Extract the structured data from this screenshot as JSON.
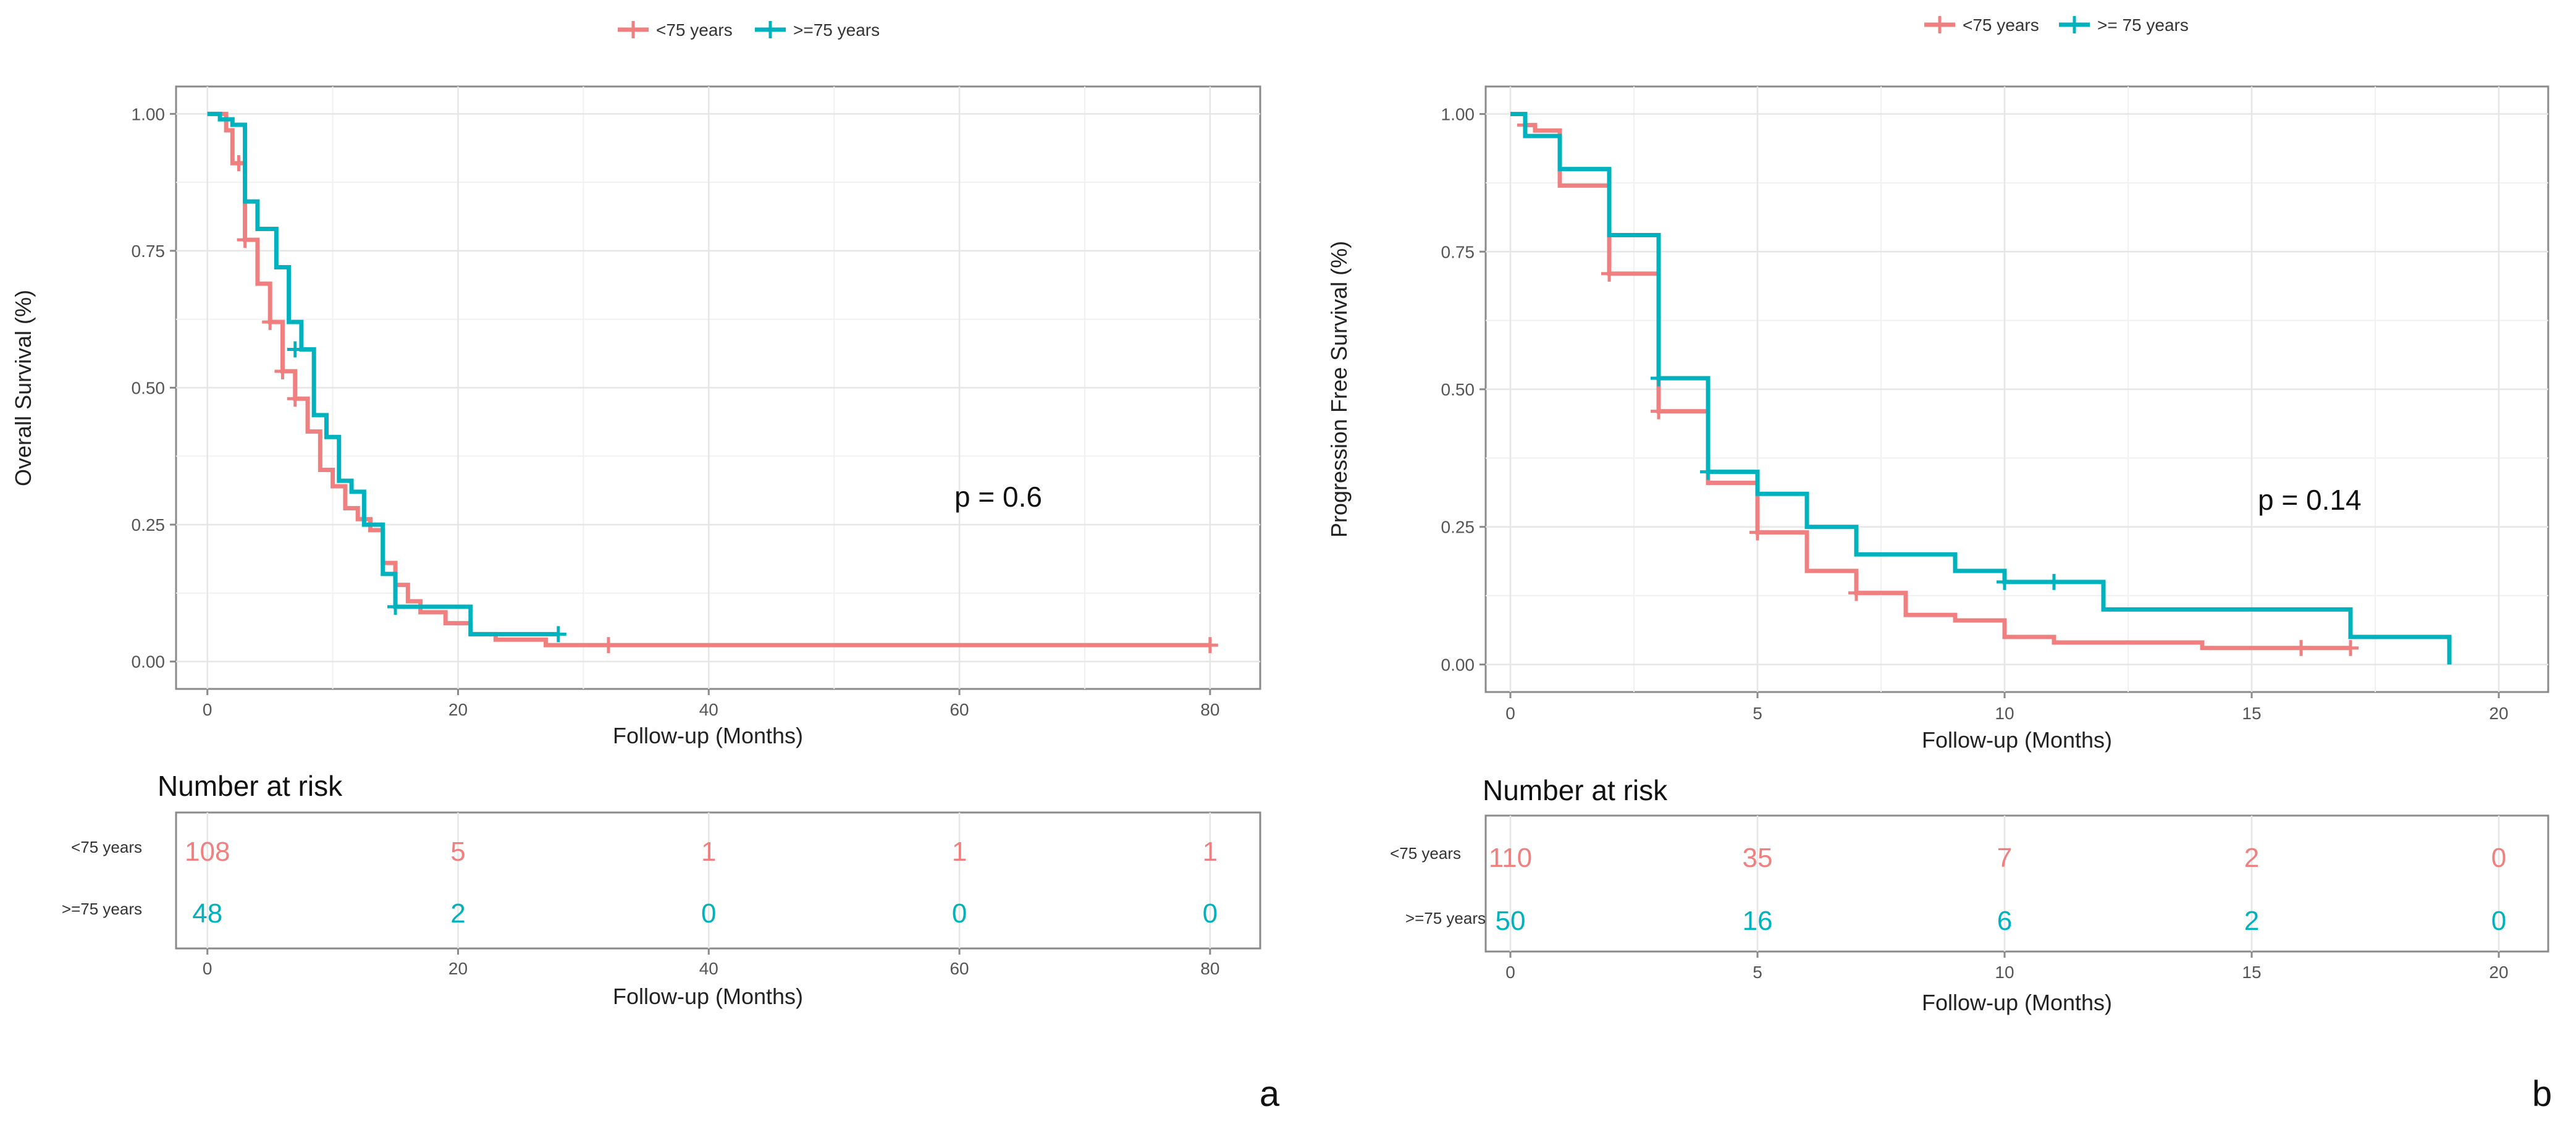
{
  "colors": {
    "lt75": "#F08080",
    "ge75": "#00B2BD",
    "grid": "#e6e6e6",
    "frame": "#8a8a8a",
    "axisText": "#555555"
  },
  "panels": [
    {
      "id": "a",
      "panel_label": "a",
      "legend": [
        "<75 years",
        ">=75 years"
      ],
      "ylabel": "Overall Survival (%)",
      "xlabel": "Follow-up (Months)",
      "pvalue_label": "p = 0.6",
      "risk_title": "Number at risk",
      "risk_xlabel": "Follow-up (Months)",
      "risk_groups": [
        "<75 years",
        ">=75 years"
      ],
      "risk_times": [
        0,
        20,
        40,
        60,
        80
      ],
      "risk_counts": [
        [
          108,
          5,
          1,
          1,
          1
        ],
        [
          48,
          2,
          0,
          0,
          0
        ]
      ]
    },
    {
      "id": "b",
      "panel_label": "b",
      "legend": [
        "<75 years",
        ">= 75 years"
      ],
      "ylabel": "Progression Free Survival (%)",
      "xlabel": "Follow-up (Months)",
      "pvalue_label": "p = 0.14",
      "risk_title": "Number at risk",
      "risk_xlabel": "Follow-up (Months)",
      "risk_groups": [
        "<75 years",
        ">=75 years"
      ],
      "risk_times": [
        0,
        5,
        10,
        15,
        20
      ],
      "risk_counts": [
        [
          110,
          35,
          7,
          2,
          0
        ],
        [
          50,
          16,
          6,
          2,
          0
        ]
      ]
    }
  ],
  "chart_data": [
    {
      "type": "line",
      "title": "",
      "xlabel": "Follow-up (Months)",
      "ylabel": "Overall Survival (%)",
      "xlim": [
        -2.5,
        84
      ],
      "ylim": [
        -0.05,
        1.05
      ],
      "xticks": [
        0,
        20,
        40,
        60,
        80
      ],
      "yticks": [
        "0.00",
        "0.25",
        "0.50",
        "0.75",
        "1.00"
      ],
      "grid": true,
      "legend_position": "top-center",
      "series": [
        {
          "name": "<75 years",
          "step": [
            [
              0,
              1.0
            ],
            [
              1.5,
              0.97
            ],
            [
              2,
              0.91
            ],
            [
              3,
              0.83
            ],
            [
              3,
              0.77
            ],
            [
              4,
              0.77
            ],
            [
              4,
              0.69
            ],
            [
              5,
              0.69
            ],
            [
              5,
              0.62
            ],
            [
              6,
              0.62
            ],
            [
              6,
              0.53
            ],
            [
              7,
              0.48
            ],
            [
              8,
              0.42
            ],
            [
              9,
              0.35
            ],
            [
              10,
              0.32
            ],
            [
              11,
              0.28
            ],
            [
              12,
              0.26
            ],
            [
              13,
              0.24
            ],
            [
              14,
              0.18
            ],
            [
              15,
              0.14
            ],
            [
              16,
              0.11
            ],
            [
              17,
              0.09
            ],
            [
              19,
              0.07
            ],
            [
              21,
              0.05
            ],
            [
              23,
              0.04
            ],
            [
              27,
              0.03
            ],
            [
              80,
              0.03
            ]
          ],
          "censor": [
            [
              2.5,
              0.91
            ],
            [
              3,
              0.77
            ],
            [
              5,
              0.62
            ],
            [
              6,
              0.53
            ],
            [
              7,
              0.48
            ],
            [
              32,
              0.03
            ],
            [
              80,
              0.03
            ]
          ]
        },
        {
          "name": ">=75 years",
          "step": [
            [
              0,
              1.0
            ],
            [
              1,
              0.99
            ],
            [
              2,
              0.98
            ],
            [
              3,
              0.96
            ],
            [
              3,
              0.84
            ],
            [
              4,
              0.84
            ],
            [
              4,
              0.79
            ],
            [
              5,
              0.79
            ],
            [
              5.5,
              0.72
            ],
            [
              6.5,
              0.62
            ],
            [
              7.5,
              0.57
            ],
            [
              8.5,
              0.45
            ],
            [
              9.5,
              0.41
            ],
            [
              10.5,
              0.33
            ],
            [
              11.5,
              0.31
            ],
            [
              12.5,
              0.25
            ],
            [
              14,
              0.25
            ],
            [
              14,
              0.16
            ],
            [
              15,
              0.1
            ],
            [
              21,
              0.05
            ],
            [
              28,
              0.05
            ]
          ],
          "censor": [
            [
              7,
              0.57
            ],
            [
              15,
              0.1
            ],
            [
              28,
              0.05
            ]
          ]
        }
      ],
      "annotation": "p = 0.6"
    },
    {
      "type": "line",
      "title": "",
      "xlabel": "Follow-up (Months)",
      "ylabel": "Progression Free Survival (%)",
      "xlim": [
        -0.5,
        21
      ],
      "ylim": [
        -0.05,
        1.05
      ],
      "xticks": [
        0,
        5,
        10,
        15,
        20
      ],
      "yticks": [
        "0.00",
        "0.25",
        "0.50",
        "0.75",
        "1.00"
      ],
      "grid": true,
      "legend_position": "top-center",
      "series": [
        {
          "name": "<75 years",
          "step": [
            [
              0,
              1.0
            ],
            [
              0.3,
              0.98
            ],
            [
              0.5,
              0.97
            ],
            [
              1,
              0.87
            ],
            [
              2,
              0.71
            ],
            [
              3,
              0.46
            ],
            [
              4,
              0.33
            ],
            [
              5,
              0.24
            ],
            [
              6,
              0.17
            ],
            [
              7,
              0.13
            ],
            [
              8,
              0.09
            ],
            [
              9,
              0.08
            ],
            [
              10,
              0.05
            ],
            [
              11,
              0.04
            ],
            [
              14,
              0.03
            ],
            [
              17,
              0.03
            ]
          ],
          "censor": [
            [
              0.3,
              0.98
            ],
            [
              2,
              0.71
            ],
            [
              3,
              0.46
            ],
            [
              5,
              0.24
            ],
            [
              7,
              0.13
            ],
            [
              16,
              0.03
            ],
            [
              17,
              0.03
            ]
          ]
        },
        {
          "name": ">= 75 years",
          "step": [
            [
              0,
              1.0
            ],
            [
              0.3,
              0.96
            ],
            [
              1,
              0.9
            ],
            [
              2,
              0.78
            ],
            [
              3,
              0.52
            ],
            [
              4,
              0.35
            ],
            [
              5,
              0.31
            ],
            [
              6,
              0.25
            ],
            [
              7,
              0.2
            ],
            [
              9,
              0.17
            ],
            [
              10,
              0.15
            ],
            [
              12,
              0.1
            ],
            [
              17,
              0.05
            ],
            [
              19,
              0.0
            ]
          ],
          "censor": [
            [
              3,
              0.52
            ],
            [
              4,
              0.35
            ],
            [
              10,
              0.15
            ],
            [
              11,
              0.15
            ]
          ]
        }
      ],
      "annotation": "p = 0.14"
    }
  ]
}
